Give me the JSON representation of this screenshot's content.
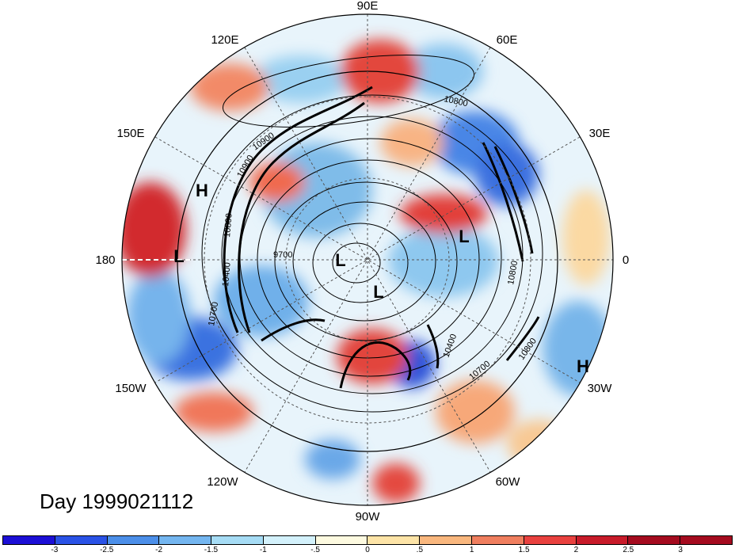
{
  "title": "Day 1999021112",
  "map": {
    "projection": "polar stereographic, north pole",
    "longitude_labels": [
      "90E",
      "60E",
      "30E",
      "0",
      "30W",
      "60W",
      "90W",
      "120W",
      "150W",
      "180",
      "150E",
      "120E"
    ],
    "pressure_centers": [
      {
        "label": "H",
        "region": "north pacific"
      },
      {
        "label": "L",
        "region": "dateline"
      },
      {
        "label": "L",
        "region": "pole"
      },
      {
        "label": "L",
        "region": "hudson bay"
      },
      {
        "label": "L",
        "region": "europe"
      },
      {
        "label": "H",
        "region": "azores"
      }
    ],
    "contour_labels": [
      "10800",
      "10900",
      "10700",
      "10900",
      "9700",
      "10400",
      "10800",
      "10800",
      "10400",
      "10700",
      "10800"
    ]
  },
  "colorbar": {
    "ticks": [
      "-3",
      "-2.5",
      "-2",
      "-1.5",
      "-1",
      "-.5",
      "0",
      ".5",
      "1",
      "1.5",
      "2",
      "2.5",
      "3"
    ],
    "colors": [
      "#1c0fd6",
      "#2a52e6",
      "#4c8fe9",
      "#74b6f0",
      "#a6dcf5",
      "#d3f1fb",
      "#fdfae0",
      "#fde4a7",
      "#f9b77e",
      "#f07f5f",
      "#e9413f",
      "#c81b2a",
      "#a50b1f",
      "#a50b1f"
    ]
  }
}
